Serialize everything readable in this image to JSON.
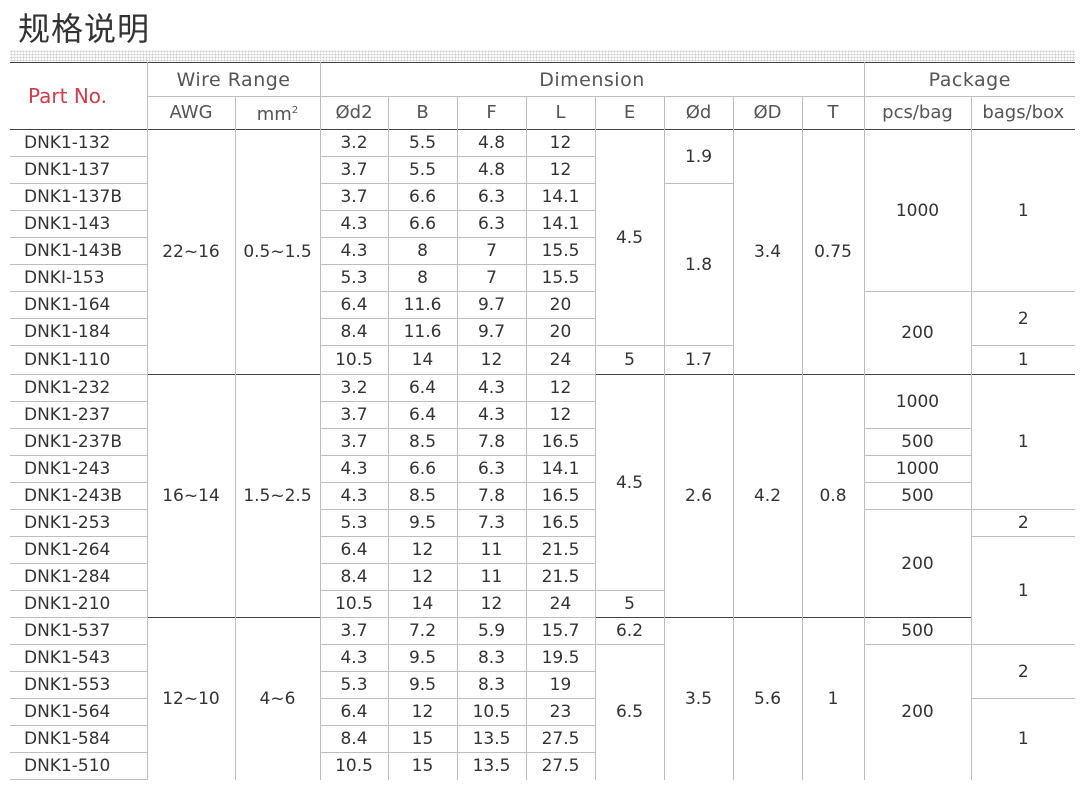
{
  "title": "规格说明",
  "header": {
    "part_no": "Part No.",
    "wire_range": "Wire Range",
    "dimension": "Dimension",
    "package": "Package",
    "awg": "AWG",
    "mm": "mm",
    "mm_sup": "2",
    "d2": "Ød2",
    "b": "B",
    "f": "F",
    "l": "L",
    "e": "E",
    "d_small": "Ød",
    "d_big": "ØD",
    "t": "T",
    "pcs_bag": "pcs/bag",
    "bags_box": "bags/box"
  },
  "rows": [
    {
      "part": "DNK1-132",
      "d2": "3.2",
      "b": "5.5",
      "f": "4.8",
      "l": "12"
    },
    {
      "part": "DNK1-137",
      "d2": "3.7",
      "b": "5.5",
      "f": "4.8",
      "l": "12"
    },
    {
      "part": "DNK1-137B",
      "d2": "3.7",
      "b": "6.6",
      "f": "6.3",
      "l": "14.1"
    },
    {
      "part": "DNK1-143",
      "d2": "4.3",
      "b": "6.6",
      "f": "6.3",
      "l": "14.1"
    },
    {
      "part": "DNK1-143B",
      "d2": "4.3",
      "b": "8",
      "f": "7",
      "l": "15.5"
    },
    {
      "part": "DNKI-153",
      "d2": "5.3",
      "b": "8",
      "f": "7",
      "l": "15.5"
    },
    {
      "part": "DNK1-164",
      "d2": "6.4",
      "b": "11.6",
      "f": "9.7",
      "l": "20"
    },
    {
      "part": "DNK1-184",
      "d2": "8.4",
      "b": "11.6",
      "f": "9.7",
      "l": "20"
    },
    {
      "part": "DNK1-110",
      "d2": "10.5",
      "b": "14",
      "f": "12",
      "l": "24"
    },
    {
      "part": "DNK1-232",
      "d2": "3.2",
      "b": "6.4",
      "f": "4.3",
      "l": "12"
    },
    {
      "part": "DNK1-237",
      "d2": "3.7",
      "b": "6.4",
      "f": "4.3",
      "l": "12"
    },
    {
      "part": "DNK1-237B",
      "d2": "3.7",
      "b": "8.5",
      "f": "7.8",
      "l": "16.5"
    },
    {
      "part": "DNK1-243",
      "d2": "4.3",
      "b": "6.6",
      "f": "6.3",
      "l": "14.1"
    },
    {
      "part": "DNK1-243B",
      "d2": "4.3",
      "b": "8.5",
      "f": "7.8",
      "l": "16.5"
    },
    {
      "part": "DNK1-253",
      "d2": "5.3",
      "b": "9.5",
      "f": "7.3",
      "l": "16.5"
    },
    {
      "part": "DNK1-264",
      "d2": "6.4",
      "b": "12",
      "f": "11",
      "l": "21.5"
    },
    {
      "part": "DNK1-284",
      "d2": "8.4",
      "b": "12",
      "f": "11",
      "l": "21.5"
    },
    {
      "part": "DNK1-210",
      "d2": "10.5",
      "b": "14",
      "f": "12",
      "l": "24"
    },
    {
      "part": "DNK1-537",
      "d2": "3.7",
      "b": "7.2",
      "f": "5.9",
      "l": "15.7"
    },
    {
      "part": "DNK1-543",
      "d2": "4.3",
      "b": "9.5",
      "f": "8.3",
      "l": "19.5"
    },
    {
      "part": "DNK1-553",
      "d2": "5.3",
      "b": "9.5",
      "f": "8.3",
      "l": "19"
    },
    {
      "part": "DNK1-564",
      "d2": "6.4",
      "b": "12",
      "f": "10.5",
      "l": "23"
    },
    {
      "part": "DNK1-584",
      "d2": "8.4",
      "b": "15",
      "f": "13.5",
      "l": "27.5"
    },
    {
      "part": "DNK1-510",
      "d2": "10.5",
      "b": "15",
      "f": "13.5",
      "l": "27.5"
    }
  ],
  "groups": {
    "g1": {
      "awg": "22~16",
      "mm": "0.5~1.5",
      "e": "4.5",
      "e_last": "5",
      "d_a": "1.9",
      "d_b": "1.8",
      "d_last": "1.7",
      "dbig": "3.4",
      "t": "0.75",
      "pcs_a": "1000",
      "pcs_b": "200",
      "box_a": "1",
      "box_b": "2",
      "box_c": "1"
    },
    "g2": {
      "awg": "16~14",
      "mm": "1.5~2.5",
      "e": "4.5",
      "e_last": "5",
      "d": "2.6",
      "dbig": "4.2",
      "t": "0.8",
      "pcs_a": "1000",
      "pcs_b": "500",
      "pcs_c": "1000",
      "pcs_d": "500",
      "pcs_e": "200",
      "box_a": "1",
      "box_b": "2",
      "box_c": "1"
    },
    "g3": {
      "awg": "12~10",
      "mm": "4~6",
      "e_first": "6.2",
      "e": "6.5",
      "d": "3.5",
      "dbig": "5.6",
      "t": "1",
      "pcs_a": "500",
      "pcs_b": "200",
      "box_a": "2",
      "box_b": "1"
    }
  },
  "colors": {
    "accent": "#d33a4a",
    "border": "#444444",
    "line": "#bdbdbd"
  }
}
